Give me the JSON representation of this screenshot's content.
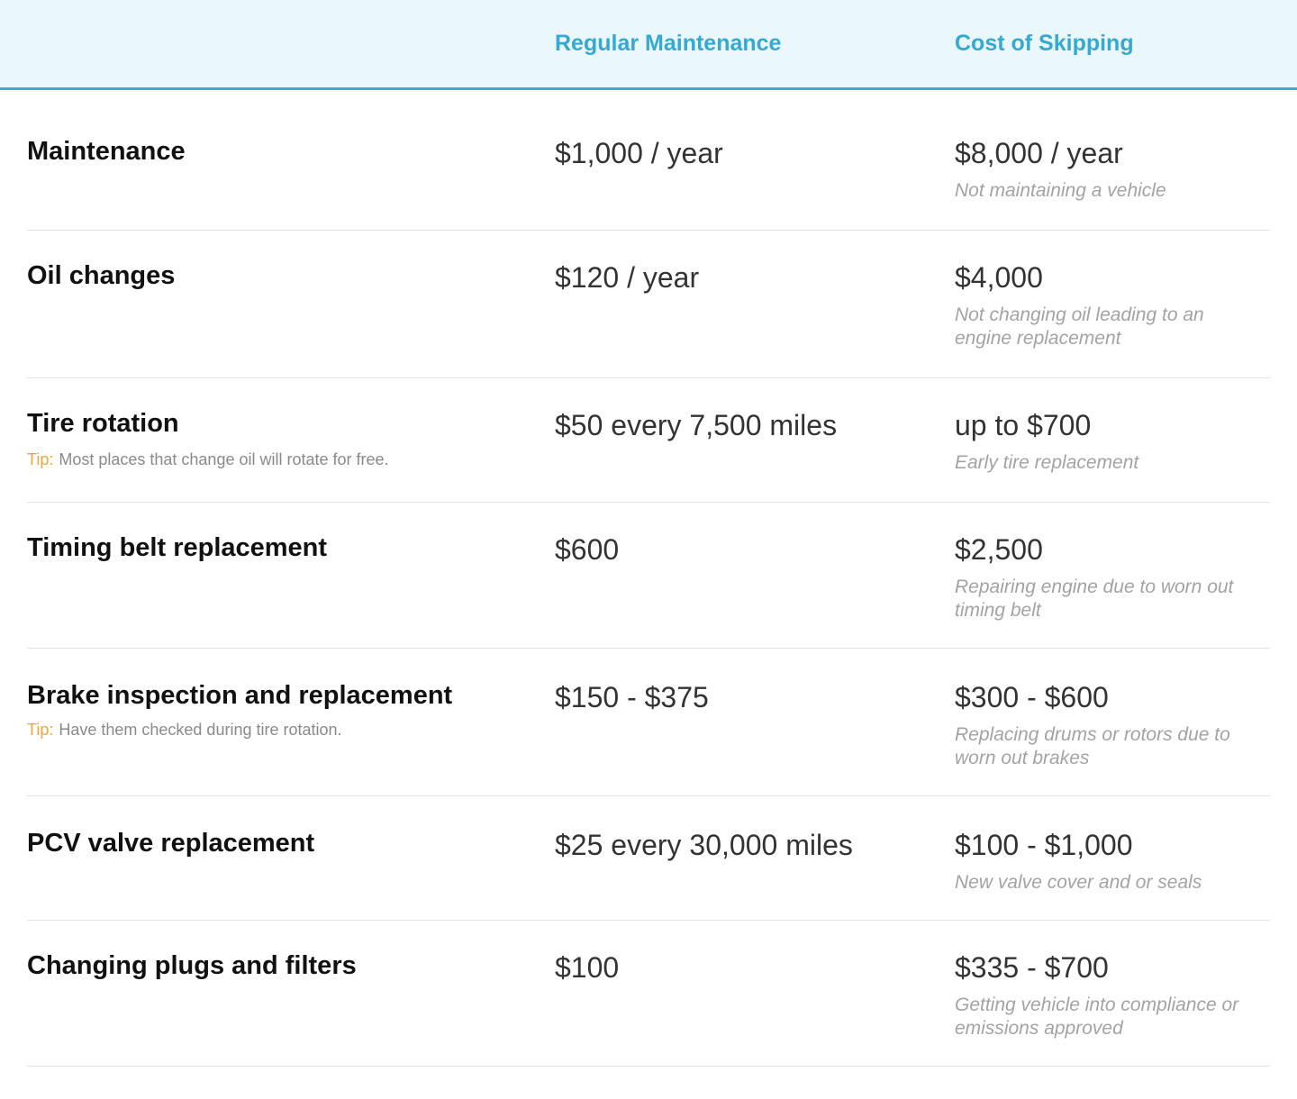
{
  "header": {
    "col_regular": "Regular Maintenance",
    "col_skip": "Cost of Skipping"
  },
  "rows": [
    {
      "item": "Maintenance",
      "regular": "$1,000 / year",
      "skip_cost": "$8,000 / year",
      "skip_note": "Not maintaining a vehicle"
    },
    {
      "item": "Oil changes",
      "regular": "$120 / year",
      "skip_cost": "$4,000",
      "skip_note": "Not changing oil leading to an engine replacement"
    },
    {
      "item": "Tire rotation",
      "tip_label": "Tip:",
      "tip": "Most places that change oil will rotate for free.",
      "regular": "$50 every 7,500 miles",
      "skip_cost": "up to $700",
      "skip_note": "Early tire replacement"
    },
    {
      "item": "Timing belt replacement",
      "regular": "$600",
      "skip_cost": "$2,500",
      "skip_note": "Repairing engine due to worn out timing belt"
    },
    {
      "item": "Brake inspection and replacement",
      "tip_label": "Tip:",
      "tip": "Have them checked during tire rotation.",
      "regular": "$150 - $375",
      "skip_cost": "$300 - $600",
      "skip_note": "Replacing drums or rotors due to worn out brakes"
    },
    {
      "item": "PCV valve replacement",
      "regular": "$25 every 30,000 miles",
      "skip_cost": "$100 - $1,000",
      "skip_note": "New valve cover and or seals"
    },
    {
      "item": "Changing plugs and filters",
      "regular": "$100",
      "skip_cost": "$335 - $700",
      "skip_note": "Getting vehicle into compliance or emissions approved"
    }
  ],
  "colors": {
    "header_bg": "#eaf8fd",
    "accent": "#35a9d2",
    "tip_label": "#f1a53a",
    "note": "#a3a3a3"
  }
}
